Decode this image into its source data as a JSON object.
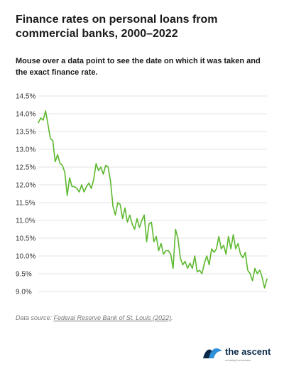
{
  "header": {
    "title": "Finance rates on personal loans from commercial banks, 2000–2022",
    "subtitle": "Mouse over a data point to see the date on which it was taken and the exact finance rate."
  },
  "source": {
    "prefix": "Data source: ",
    "link_text": "Federal Reserve Bank of St. Louis (2022)",
    "suffix": "."
  },
  "brand": {
    "name": "the ascent",
    "tagline": "a motley fool service",
    "icon": "wave-logo-icon"
  },
  "colors": {
    "line": "#5cb82e",
    "grid": "#e3e3e3",
    "logo_dark": "#0b2a4a",
    "logo_light": "#2f8fd8"
  },
  "chart_data": {
    "type": "line",
    "title": "Finance rates on personal loans from commercial banks, 2000–2022",
    "ylim": [
      9.0,
      14.5
    ],
    "yticks": [
      9.0,
      9.5,
      10.0,
      10.5,
      11.0,
      11.5,
      12.0,
      12.5,
      13.0,
      13.5,
      14.0,
      14.5
    ],
    "ytick_labels": [
      "9.0%",
      "9.5%",
      "10.0%",
      "10.5%",
      "11.0%",
      "11.5%",
      "12.0%",
      "12.5%",
      "13.0%",
      "13.5%",
      "14.0%",
      "14.5%"
    ],
    "grid": true,
    "legend": "none",
    "x_start": "2000",
    "x_end": "2022",
    "series": [
      {
        "values": [
          13.75,
          13.88,
          13.82,
          14.08,
          13.7,
          13.3,
          13.25,
          12.65,
          12.85,
          12.6,
          12.55,
          12.35,
          11.7,
          12.2,
          11.95,
          11.95,
          11.9,
          11.8,
          12.0,
          11.8,
          11.95,
          12.05,
          11.9,
          12.15,
          12.6,
          12.4,
          12.5,
          12.3,
          12.55,
          12.5,
          12.1,
          11.4,
          11.15,
          11.5,
          11.45,
          11.05,
          11.35,
          10.95,
          11.15,
          10.9,
          10.75,
          11.05,
          10.8,
          11.0,
          11.15,
          10.4,
          10.9,
          10.95,
          10.4,
          10.55,
          10.15,
          10.35,
          10.05,
          10.15,
          10.15,
          10.05,
          9.65,
          10.75,
          10.5,
          9.95,
          9.75,
          9.85,
          9.65,
          9.8,
          9.65,
          10.0,
          9.55,
          9.6,
          9.5,
          9.8,
          10.0,
          9.75,
          10.2,
          10.1,
          10.2,
          10.55,
          10.2,
          10.3,
          10.05,
          10.55,
          10.2,
          10.6,
          10.2,
          10.35,
          10.05,
          9.95,
          10.1,
          9.6,
          9.5,
          9.3,
          9.65,
          9.5,
          9.6,
          9.4,
          9.1,
          9.35
        ]
      }
    ]
  }
}
